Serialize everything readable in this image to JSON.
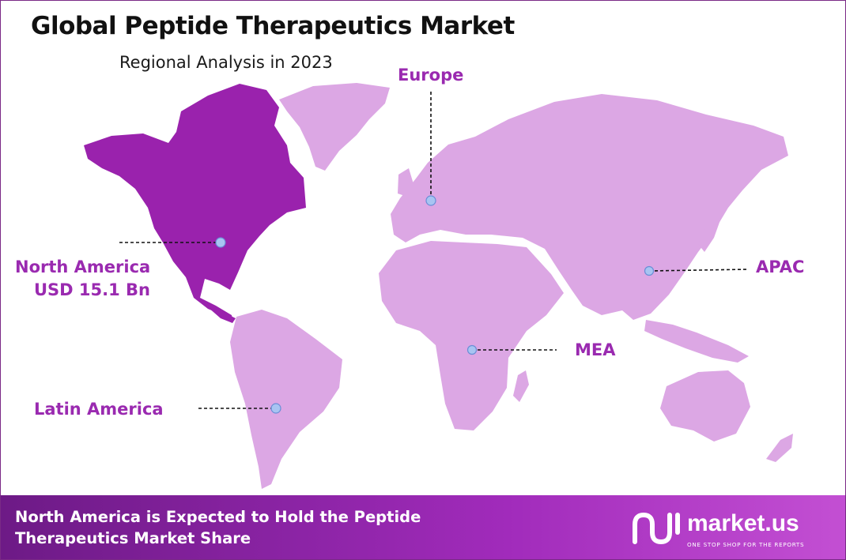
{
  "title": "Global Peptide Therapeutics Market",
  "subtitle": "Regional Analysis in 2023",
  "colors": {
    "highlight_region": "#9a22ad",
    "other_regions": "#dca7e4",
    "label_text": "#9a2ab0",
    "marker_fill": "#a8c4f2",
    "footer_start": "#6d1a86",
    "footer_end": "#c34fd3"
  },
  "regions": [
    {
      "id": "north-america",
      "name": "North America",
      "value_label": "USD 15.1 Bn",
      "highlighted": true
    },
    {
      "id": "europe",
      "name": "Europe",
      "highlighted": false
    },
    {
      "id": "apac",
      "name": "APAC",
      "highlighted": false
    },
    {
      "id": "mea",
      "name": "MEA",
      "highlighted": false
    },
    {
      "id": "latin-america",
      "name": "Latin America",
      "highlighted": false
    }
  ],
  "footer": {
    "line1": "North America is Expected to Hold the Peptide",
    "line2": "Therapeutics Market Share"
  },
  "brand": {
    "name": "market.us",
    "tagline": "ONE STOP SHOP FOR THE REPORTS",
    "icon": "market-us-logo-icon"
  }
}
